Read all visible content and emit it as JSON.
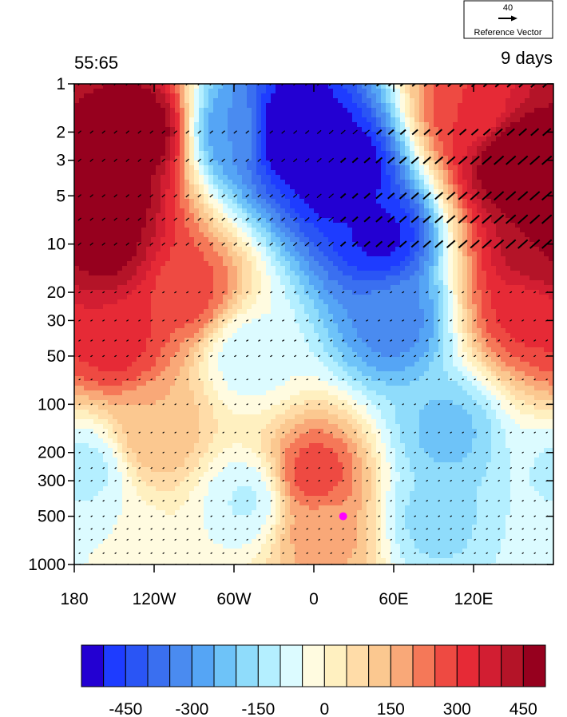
{
  "chart_data": {
    "type": "heatmap",
    "title_left": "55:65",
    "title_right": "9 days",
    "xlabel": "",
    "ylabel": "",
    "x_axis": {
      "range": [
        -180,
        180
      ],
      "ticks": [
        -180,
        -120,
        -60,
        0,
        60,
        120
      ],
      "tick_labels": [
        "180",
        "120W",
        "60W",
        "0",
        "60E",
        "120E"
      ]
    },
    "y_axis": {
      "scale": "log",
      "reversed": true,
      "range": [
        1,
        1000
      ],
      "ticks": [
        1,
        2,
        3,
        5,
        10,
        20,
        30,
        50,
        100,
        200,
        300,
        500,
        1000
      ],
      "tick_labels": [
        "1",
        "2",
        "3",
        "5",
        "10",
        "20",
        "30",
        "50",
        "100",
        "200",
        "300",
        "500",
        "1000"
      ]
    },
    "colorbar": {
      "levels": [
        -500,
        -450,
        -400,
        -350,
        -300,
        -250,
        -200,
        -150,
        -100,
        -50,
        0,
        50,
        100,
        150,
        200,
        250,
        300,
        350,
        400,
        450,
        500
      ],
      "colors": [
        "#2300d2",
        "#1e3cff",
        "#2a55f5",
        "#3a6ff0",
        "#4a8bf0",
        "#55a5f5",
        "#6ec3f8",
        "#8fdcfb",
        "#b4efff",
        "#dcfbff",
        "#fffbe0",
        "#fff0c0",
        "#ffdca8",
        "#fbc890",
        "#f9a878",
        "#f57858",
        "#ee4a42",
        "#e62a36",
        "#d21e32",
        "#b41428",
        "#96001e"
      ],
      "tick_values": [
        -450,
        -300,
        -150,
        0,
        150,
        300,
        450
      ],
      "tick_labels": [
        "-450",
        "-300",
        "-150",
        "0",
        "150",
        "300",
        "450"
      ]
    },
    "reference_vector": {
      "value": "40",
      "label": "Reference Vector"
    },
    "field_centers": [
      {
        "lon": -165,
        "p": 5,
        "value": 600
      },
      {
        "lon": -130,
        "p": 2,
        "value": 520
      },
      {
        "lon": -160,
        "p": 10,
        "value": 500
      },
      {
        "lon": -150,
        "p": 40,
        "value": 330
      },
      {
        "lon": -95,
        "p": 20,
        "value": 280
      },
      {
        "lon": 150,
        "p": 3,
        "value": 550
      },
      {
        "lon": 170,
        "p": 12,
        "value": 450
      },
      {
        "lon": 160,
        "p": 25,
        "value": 320
      },
      {
        "lon": 120,
        "p": 1.5,
        "value": 300
      },
      {
        "lon": -20,
        "p": 2,
        "value": -620
      },
      {
        "lon": 20,
        "p": 3.5,
        "value": -580
      },
      {
        "lon": 50,
        "p": 9,
        "value": -520
      },
      {
        "lon": -60,
        "p": 2,
        "value": -300
      },
      {
        "lon": 60,
        "p": 30,
        "value": -330
      },
      {
        "lon": 100,
        "p": 150,
        "value": -220
      },
      {
        "lon": 90,
        "p": 500,
        "value": -170
      },
      {
        "lon": -50,
        "p": 50,
        "value": -90
      },
      {
        "lon": 0,
        "p": 280,
        "value": 290
      },
      {
        "lon": 5,
        "p": 600,
        "value": 180
      },
      {
        "lon": -120,
        "p": 150,
        "value": 150
      },
      {
        "lon": -170,
        "p": 250,
        "value": -120
      },
      {
        "lon": -50,
        "p": 400,
        "value": -110
      },
      {
        "lon": -150,
        "p": 900,
        "value": -50
      }
    ],
    "marker": {
      "lon": 22,
      "p": 500,
      "color": "#ff00ff"
    }
  }
}
